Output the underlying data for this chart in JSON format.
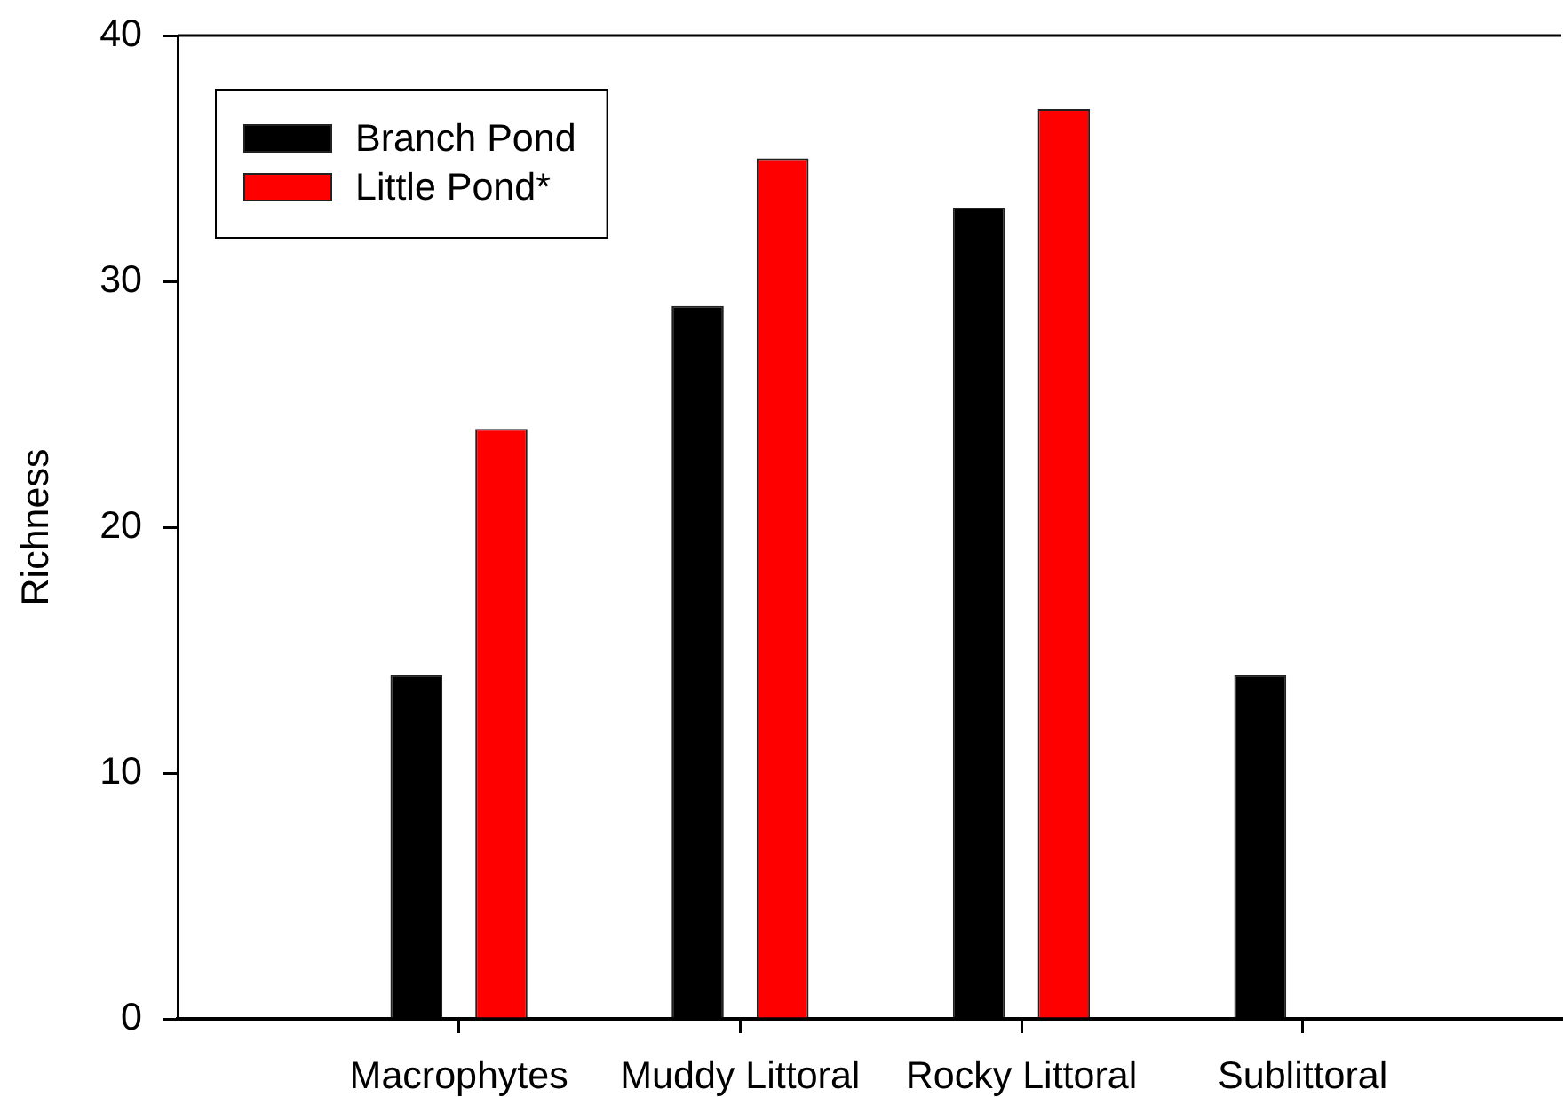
{
  "chart_data": {
    "type": "bar",
    "categories": [
      "Macrophytes",
      "Muddy Littoral",
      "Rocky Littoral",
      "Sublittoral"
    ],
    "series": [
      {
        "name": "Branch Pond",
        "color": "#000000",
        "values": [
          14,
          29,
          33,
          14
        ]
      },
      {
        "name": "Little Pond*",
        "color": "#ff0000",
        "values": [
          24,
          35,
          37,
          null
        ]
      }
    ],
    "ylabel": "Richness",
    "ylim": [
      0,
      40
    ],
    "yticks": [
      0,
      10,
      20,
      30,
      40
    ],
    "legend": "top left"
  }
}
